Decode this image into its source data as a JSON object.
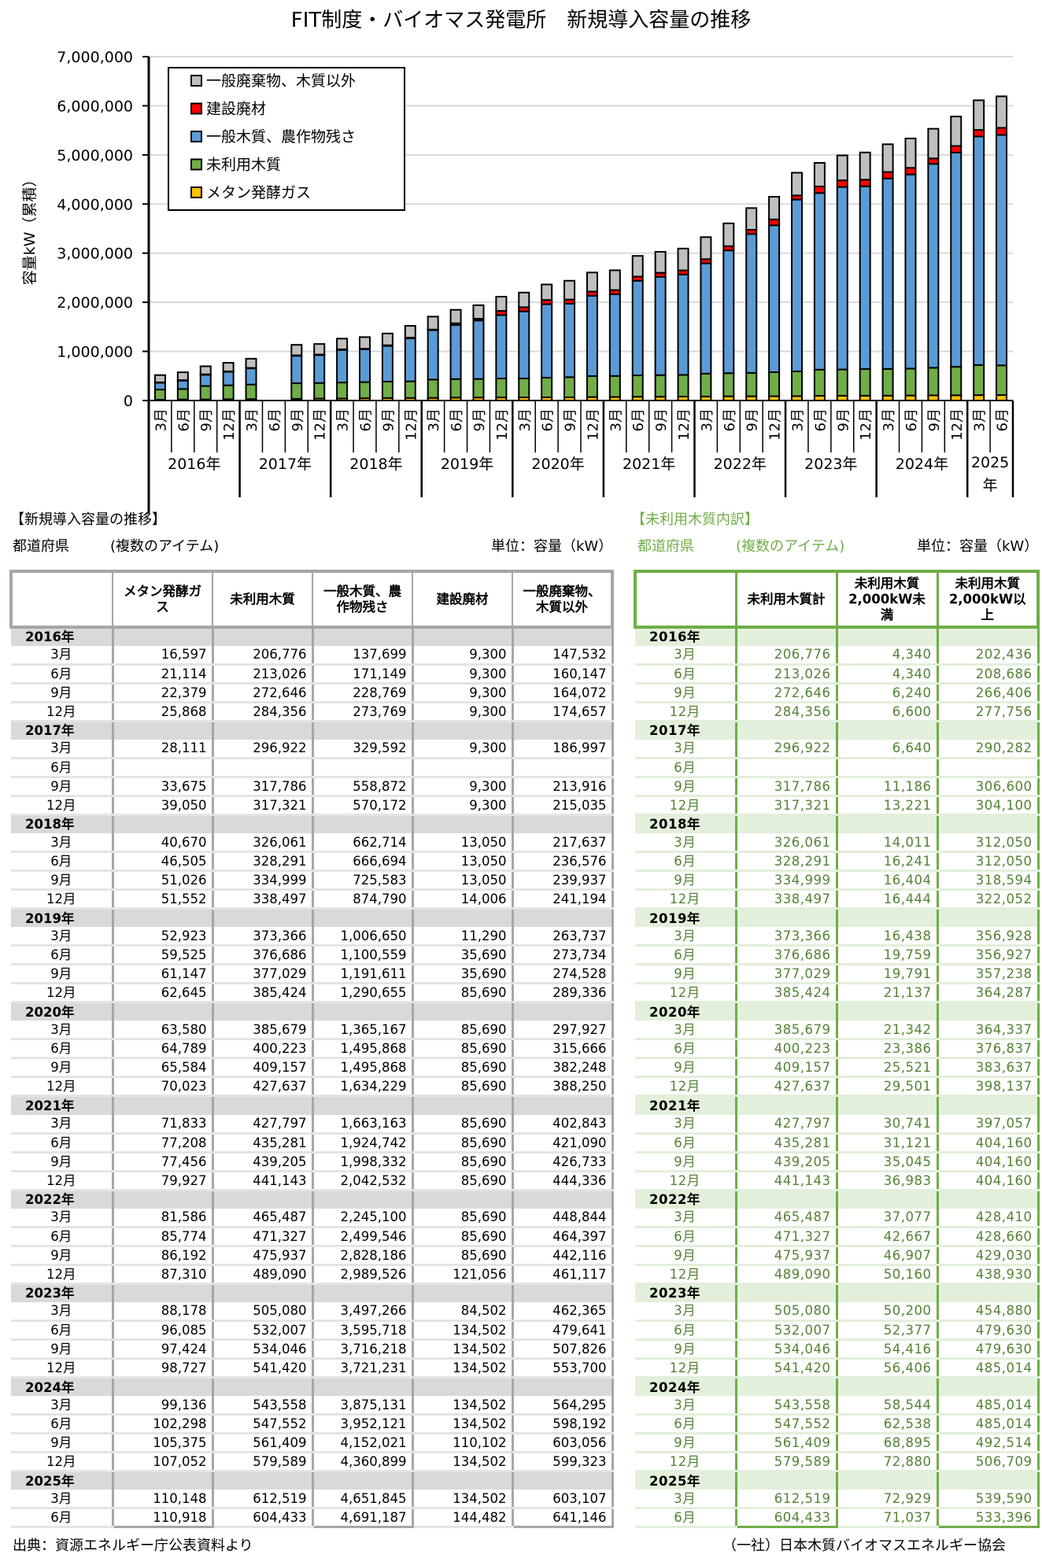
{
  "chart_data": {
    "type": "bar",
    "stacked": true,
    "title": "FIT制度・バイオマス発電所　新規導入容量の推移",
    "ylabel": "容量kW（累積）",
    "xlabel": "",
    "ylim": [
      0,
      7000000
    ],
    "yticks": [
      "0",
      "1,000,000",
      "2,000,000",
      "3,000,000",
      "4,000,000",
      "5,000,000",
      "6,000,000",
      "7,000,000"
    ],
    "ytick_values": [
      0,
      1000000,
      2000000,
      3000000,
      4000000,
      5000000,
      6000000,
      7000000
    ],
    "grid": true,
    "legend_position": "top-left",
    "years": [
      {
        "label": "2016年",
        "count": 4
      },
      {
        "label": "2017年",
        "count": 4
      },
      {
        "label": "2018年",
        "count": 4
      },
      {
        "label": "2019年",
        "count": 4
      },
      {
        "label": "2020年",
        "count": 4
      },
      {
        "label": "2021年",
        "count": 4
      },
      {
        "label": "2022年",
        "count": 4
      },
      {
        "label": "2023年",
        "count": 4
      },
      {
        "label": "2024年",
        "count": 4
      },
      {
        "label": "2025年",
        "count": 2
      }
    ],
    "categories": [
      "3月",
      "6月",
      "9月",
      "12月",
      "3月",
      "6月",
      "9月",
      "12月",
      "3月",
      "6月",
      "9月",
      "12月",
      "3月",
      "6月",
      "9月",
      "12月",
      "3月",
      "6月",
      "9月",
      "12月",
      "3月",
      "6月",
      "9月",
      "12月",
      "3月",
      "6月",
      "9月",
      "12月",
      "3月",
      "6月",
      "9月",
      "12月",
      "3月",
      "6月",
      "9月",
      "12月",
      "3月",
      "6月"
    ],
    "series": [
      {
        "name": "メタン発酵ガス",
        "color": "#ffc000",
        "values": [
          16597,
          21114,
          22379,
          25868,
          28111,
          null,
          33675,
          39050,
          40670,
          46505,
          51026,
          51552,
          52923,
          59525,
          61147,
          62645,
          63580,
          64789,
          65584,
          70023,
          71833,
          77208,
          77456,
          79927,
          81586,
          85774,
          86192,
          87310,
          88178,
          96085,
          97424,
          98727,
          99136,
          102298,
          105375,
          107052,
          110148,
          110918
        ]
      },
      {
        "name": "未利用木質",
        "color": "#70ad47",
        "values": [
          206776,
          213026,
          272646,
          284356,
          296922,
          null,
          317786,
          317321,
          326061,
          328291,
          334999,
          338497,
          373366,
          376686,
          377029,
          385424,
          385679,
          400223,
          409157,
          427637,
          427797,
          435281,
          439205,
          441143,
          465487,
          471327,
          475937,
          489090,
          505080,
          532007,
          534046,
          541420,
          543558,
          547552,
          561409,
          579589,
          612519,
          604433
        ]
      },
      {
        "name": "一般木質、農作物残さ",
        "color": "#5b9bd5",
        "values": [
          137699,
          171149,
          228769,
          273769,
          329592,
          null,
          558872,
          570172,
          662714,
          666694,
          725583,
          874790,
          1006650,
          1100559,
          1191611,
          1290655,
          1365167,
          1495868,
          1495868,
          1634229,
          1663163,
          1924742,
          1998332,
          2042532,
          2245100,
          2499546,
          2828186,
          2989526,
          3497266,
          3595718,
          3716218,
          3721231,
          3875131,
          3952121,
          4152021,
          4360899,
          4651845,
          4691187
        ]
      },
      {
        "name": "建設廃材",
        "color": "#ff0000",
        "values": [
          9300,
          9300,
          9300,
          9300,
          9300,
          null,
          9300,
          9300,
          13050,
          13050,
          13050,
          14006,
          11290,
          35690,
          35690,
          85690,
          85690,
          85690,
          85690,
          85690,
          85690,
          85690,
          85690,
          85690,
          85690,
          85690,
          85690,
          121056,
          84502,
          134502,
          134502,
          134502,
          134502,
          134502,
          110102,
          134502,
          134502,
          144482
        ]
      },
      {
        "name": "一般廃棄物、木質以外",
        "color": "#bfbfbf",
        "values": [
          147532,
          160147,
          164072,
          174657,
          186997,
          null,
          213916,
          215035,
          217637,
          236576,
          239937,
          241194,
          263737,
          273734,
          274528,
          289336,
          297927,
          315666,
          382248,
          388250,
          402843,
          421090,
          426733,
          444336,
          448844,
          464397,
          442116,
          461117,
          462365,
          479641,
          507826,
          553700,
          564295,
          598192,
          603056,
          599323,
          603107,
          641146
        ]
      }
    ],
    "legend_order": [
      4,
      3,
      2,
      1,
      0
    ]
  },
  "main_table": {
    "heading": "【新規導入容量の推移】",
    "filter_label": "都道府県",
    "filter_value": "(複数のアイテム)",
    "unit": "単位：容量（kW）",
    "columns": [
      "メタン発酵ガス",
      "未利用木質",
      "一般木質、農作物残さ",
      "建設廃材",
      "一般廃棄物、木質以外"
    ]
  },
  "breakdown_table": {
    "heading": "【未利用木質内訳】",
    "filter_label": "都道府県",
    "filter_value": "(複数のアイテム)",
    "unit": "単位：容量（kW）",
    "columns": [
      "未利用木質計",
      "未利用木質 2,000kW未満",
      "未利用木質 2,000kW以上"
    ],
    "total": [
      206776,
      213026,
      272646,
      284356,
      296922,
      null,
      317786,
      317321,
      326061,
      328291,
      334999,
      338497,
      373366,
      376686,
      377029,
      385424,
      385679,
      400223,
      409157,
      427637,
      427797,
      435281,
      439205,
      441143,
      465487,
      471327,
      475937,
      489090,
      505080,
      532007,
      534046,
      541420,
      543558,
      547552,
      561409,
      579589,
      612519,
      604433
    ],
    "under_2000kw": [
      4340,
      4340,
      6240,
      6600,
      6640,
      null,
      11186,
      13221,
      14011,
      16241,
      16404,
      16444,
      16438,
      19759,
      19791,
      21137,
      21342,
      23386,
      25521,
      29501,
      30741,
      31121,
      35045,
      36983,
      37077,
      42667,
      46907,
      50160,
      50200,
      52377,
      54416,
      56406,
      58544,
      62538,
      68895,
      72880,
      72929,
      71037
    ],
    "over_2000kw": [
      202436,
      208686,
      266406,
      277756,
      290282,
      null,
      306600,
      304100,
      312050,
      312050,
      318594,
      322052,
      356928,
      356927,
      357238,
      364287,
      364337,
      376837,
      383637,
      398137,
      397057,
      404160,
      404160,
      404160,
      428410,
      428660,
      429030,
      438930,
      454880,
      479630,
      479630,
      485014,
      485014,
      485014,
      492514,
      506709,
      539590,
      533396
    ]
  },
  "footer": {
    "source": "出典：資源エネルギー庁公表資料より",
    "org": "（一社）日本木質バイオマスエネルギー協会"
  }
}
